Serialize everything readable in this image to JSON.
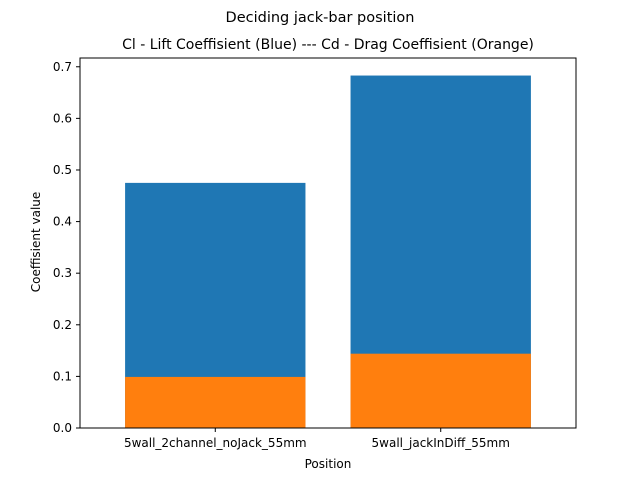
{
  "figure": {
    "suptitle": "Deciding jack-bar position"
  },
  "chart_data": {
    "type": "bar",
    "stacked": false,
    "overlaid": true,
    "title": "Cl - Lift Coeffisient (Blue) --- Cd - Drag Coeffisient (Orange)",
    "xlabel": "Position",
    "ylabel": "Coeffisient value",
    "categories": [
      "5wall_2channel_noJack_55mm",
      "5wall_jackInDiff_55mm"
    ],
    "series": [
      {
        "color": "#1f77b4",
        "values": [
          0.475,
          0.683
        ]
      },
      {
        "color": "#ff7f0e",
        "values": [
          0.099,
          0.144
        ]
      }
    ],
    "ylim": [
      0,
      0.717
    ],
    "yticks": [
      0.0,
      0.1,
      0.2,
      0.3,
      0.4,
      0.5,
      0.6,
      0.7
    ],
    "ytick_labels": [
      "0.0",
      "0.1",
      "0.2",
      "0.3",
      "0.4",
      "0.5",
      "0.6",
      "0.7"
    ],
    "grid": false,
    "legend": "none"
  }
}
